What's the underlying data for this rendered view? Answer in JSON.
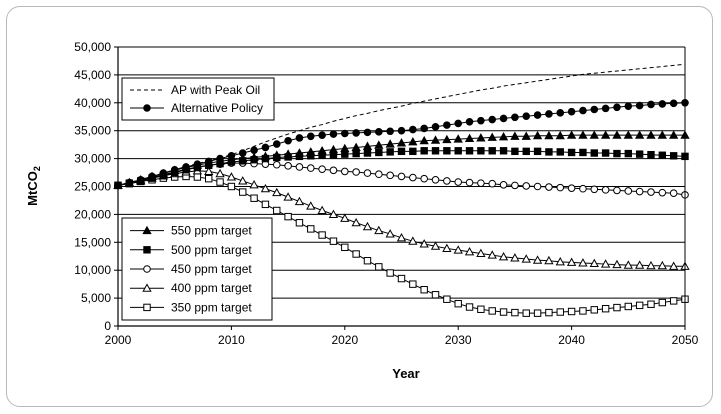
{
  "chart_data": {
    "type": "line",
    "xlabel": "Year",
    "ylabel": "MtCO",
    "ylabel_sub": "2",
    "xlim": [
      2000,
      2050
    ],
    "ylim": [
      0,
      50000
    ],
    "x_ticks": [
      "2000",
      "2010",
      "2020",
      "2030",
      "2040",
      "2050"
    ],
    "y_ticks": [
      "0",
      "5,000",
      "10,000",
      "15,000",
      "20,000",
      "25,000",
      "30,000",
      "35,000",
      "40,000",
      "45,000",
      "50,000"
    ],
    "grid": "horizontal",
    "x": [
      2000,
      2001,
      2002,
      2003,
      2004,
      2005,
      2006,
      2007,
      2008,
      2009,
      2010,
      2011,
      2012,
      2013,
      2014,
      2015,
      2016,
      2017,
      2018,
      2019,
      2020,
      2021,
      2022,
      2023,
      2024,
      2025,
      2026,
      2027,
      2028,
      2029,
      2030,
      2031,
      2032,
      2033,
      2034,
      2035,
      2036,
      2037,
      2038,
      2039,
      2040,
      2041,
      2042,
      2043,
      2044,
      2045,
      2046,
      2047,
      2048,
      2049,
      2050
    ],
    "legends": [
      {
        "placement": "top-left",
        "entries": [
          "AP with Peak Oil",
          "Alternative Policy"
        ]
      },
      {
        "placement": "bottom-left",
        "entries": [
          "550 ppm target",
          "500 ppm target",
          "450 ppm target",
          "400 ppm target",
          "350 ppm target"
        ]
      }
    ],
    "series": [
      {
        "name": "AP with Peak Oil",
        "marker": "none",
        "dashed": true,
        "values": [
          25200,
          25700,
          26200,
          26800,
          27400,
          28000,
          28600,
          29100,
          29600,
          30100,
          30700,
          31400,
          32200,
          33000,
          33700,
          34400,
          35000,
          35600,
          36100,
          36700,
          37200,
          37700,
          38100,
          38600,
          39000,
          39400,
          39900,
          40300,
          40700,
          41100,
          41500,
          41900,
          42300,
          42600,
          43000,
          43300,
          43600,
          43900,
          44200,
          44500,
          44800,
          45100,
          45300,
          45500,
          45700,
          45900,
          46100,
          46300,
          46500,
          46700,
          46900
        ]
      },
      {
        "name": "Alternative Policy",
        "marker": "circle-filled",
        "values": [
          25200,
          25700,
          26200,
          26800,
          27400,
          28000,
          28500,
          29000,
          29500,
          30000,
          30500,
          31000,
          31500,
          32000,
          32600,
          33200,
          33700,
          34000,
          34200,
          34400,
          34500,
          34600,
          34700,
          34800,
          34900,
          35000,
          35200,
          35400,
          35700,
          36000,
          36300,
          36600,
          36800,
          37000,
          37200,
          37400,
          37600,
          37800,
          38000,
          38200,
          38400,
          38600,
          38800,
          39000,
          39200,
          39400,
          39500,
          39700,
          39800,
          39900,
          40000
        ]
      },
      {
        "name": "550 ppm target",
        "marker": "triangle-filled",
        "values": [
          25200,
          25700,
          26200,
          26800,
          27300,
          27900,
          28400,
          28800,
          29200,
          29500,
          29800,
          30000,
          30200,
          30400,
          30600,
          30800,
          31000,
          31200,
          31400,
          31600,
          31800,
          32000,
          32200,
          32400,
          32600,
          32800,
          33000,
          33200,
          33300,
          33400,
          33500,
          33600,
          33700,
          33800,
          33900,
          34000,
          34000,
          34100,
          34100,
          34100,
          34200,
          34200,
          34200,
          34200,
          34200,
          34200,
          34200,
          34200,
          34200,
          34200,
          34200
        ]
      },
      {
        "name": "500 ppm target",
        "marker": "square-filled",
        "values": [
          25200,
          25600,
          26000,
          26500,
          27000,
          27500,
          28000,
          28400,
          28800,
          29100,
          29400,
          29600,
          29800,
          30000,
          30200,
          30300,
          30400,
          30500,
          30600,
          30700,
          30800,
          30900,
          31000,
          31100,
          31200,
          31300,
          31300,
          31400,
          31400,
          31400,
          31400,
          31400,
          31400,
          31400,
          31400,
          31300,
          31300,
          31300,
          31200,
          31200,
          31100,
          31100,
          31000,
          31000,
          30900,
          30900,
          30800,
          30700,
          30600,
          30500,
          30400
        ]
      },
      {
        "name": "450 ppm target",
        "marker": "circle-open",
        "values": [
          25200,
          25600,
          26100,
          26600,
          27100,
          27600,
          28100,
          28500,
          28800,
          29000,
          29200,
          29200,
          29100,
          29000,
          28900,
          28700,
          28500,
          28300,
          28100,
          27900,
          27700,
          27600,
          27400,
          27200,
          27000,
          26800,
          26600,
          26400,
          26200,
          26000,
          25800,
          25700,
          25600,
          25500,
          25300,
          25200,
          25100,
          25000,
          24900,
          24800,
          24700,
          24600,
          24500,
          24400,
          24300,
          24200,
          24100,
          24000,
          23900,
          23800,
          23500
        ]
      },
      {
        "name": "400 ppm target",
        "marker": "triangle-open",
        "values": [
          25200,
          25600,
          26000,
          26500,
          26900,
          27300,
          27600,
          27800,
          27700,
          27300,
          26700,
          26000,
          25300,
          24600,
          23900,
          23100,
          22300,
          21500,
          20700,
          20000,
          19300,
          18500,
          17800,
          17100,
          16500,
          15800,
          15200,
          14700,
          14300,
          13900,
          13600,
          13300,
          13000,
          12700,
          12400,
          12200,
          12000,
          11800,
          11700,
          11500,
          11400,
          11300,
          11200,
          11100,
          11000,
          10900,
          10900,
          10800,
          10800,
          10700,
          10700
        ]
      },
      {
        "name": "350 ppm target",
        "marker": "square-open",
        "values": [
          25200,
          25500,
          25900,
          26200,
          26500,
          26700,
          26800,
          26700,
          26400,
          25800,
          25000,
          24000,
          22900,
          21800,
          20700,
          19600,
          18500,
          17400,
          16300,
          15200,
          14100,
          12900,
          11700,
          10600,
          9500,
          8500,
          7500,
          6500,
          5600,
          4800,
          4000,
          3400,
          3000,
          2700,
          2500,
          2400,
          2300,
          2300,
          2400,
          2500,
          2600,
          2700,
          2900,
          3100,
          3300,
          3500,
          3700,
          3900,
          4200,
          4500,
          4800
        ]
      }
    ]
  }
}
